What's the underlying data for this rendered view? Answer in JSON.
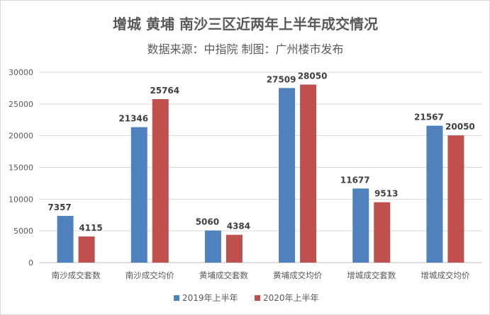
{
  "chart_data": {
    "type": "bar",
    "title": "增城 黄埔 南沙三区近两年上半年成交情况",
    "subtitle": "数据来源：中指院 制图：广州楼市发布",
    "categories": [
      "南沙成交套数",
      "南沙成交均价",
      "黄埔成交套数",
      "黄埔成交均价",
      "增城成交套数",
      "增城成交均价"
    ],
    "series": [
      {
        "name": "2019年上半年",
        "color": "#4f81bd",
        "values": [
          7357,
          21346,
          5060,
          27509,
          11677,
          21567
        ]
      },
      {
        "name": "2020年上半年",
        "color": "#c0504d",
        "values": [
          4115,
          25764,
          4384,
          28050,
          9513,
          20050
        ]
      }
    ],
    "y_ticks": [
      0,
      5000,
      10000,
      15000,
      20000,
      25000,
      30000
    ],
    "ylim": [
      0,
      30000
    ],
    "grid": true,
    "legend_position": "bottom"
  }
}
